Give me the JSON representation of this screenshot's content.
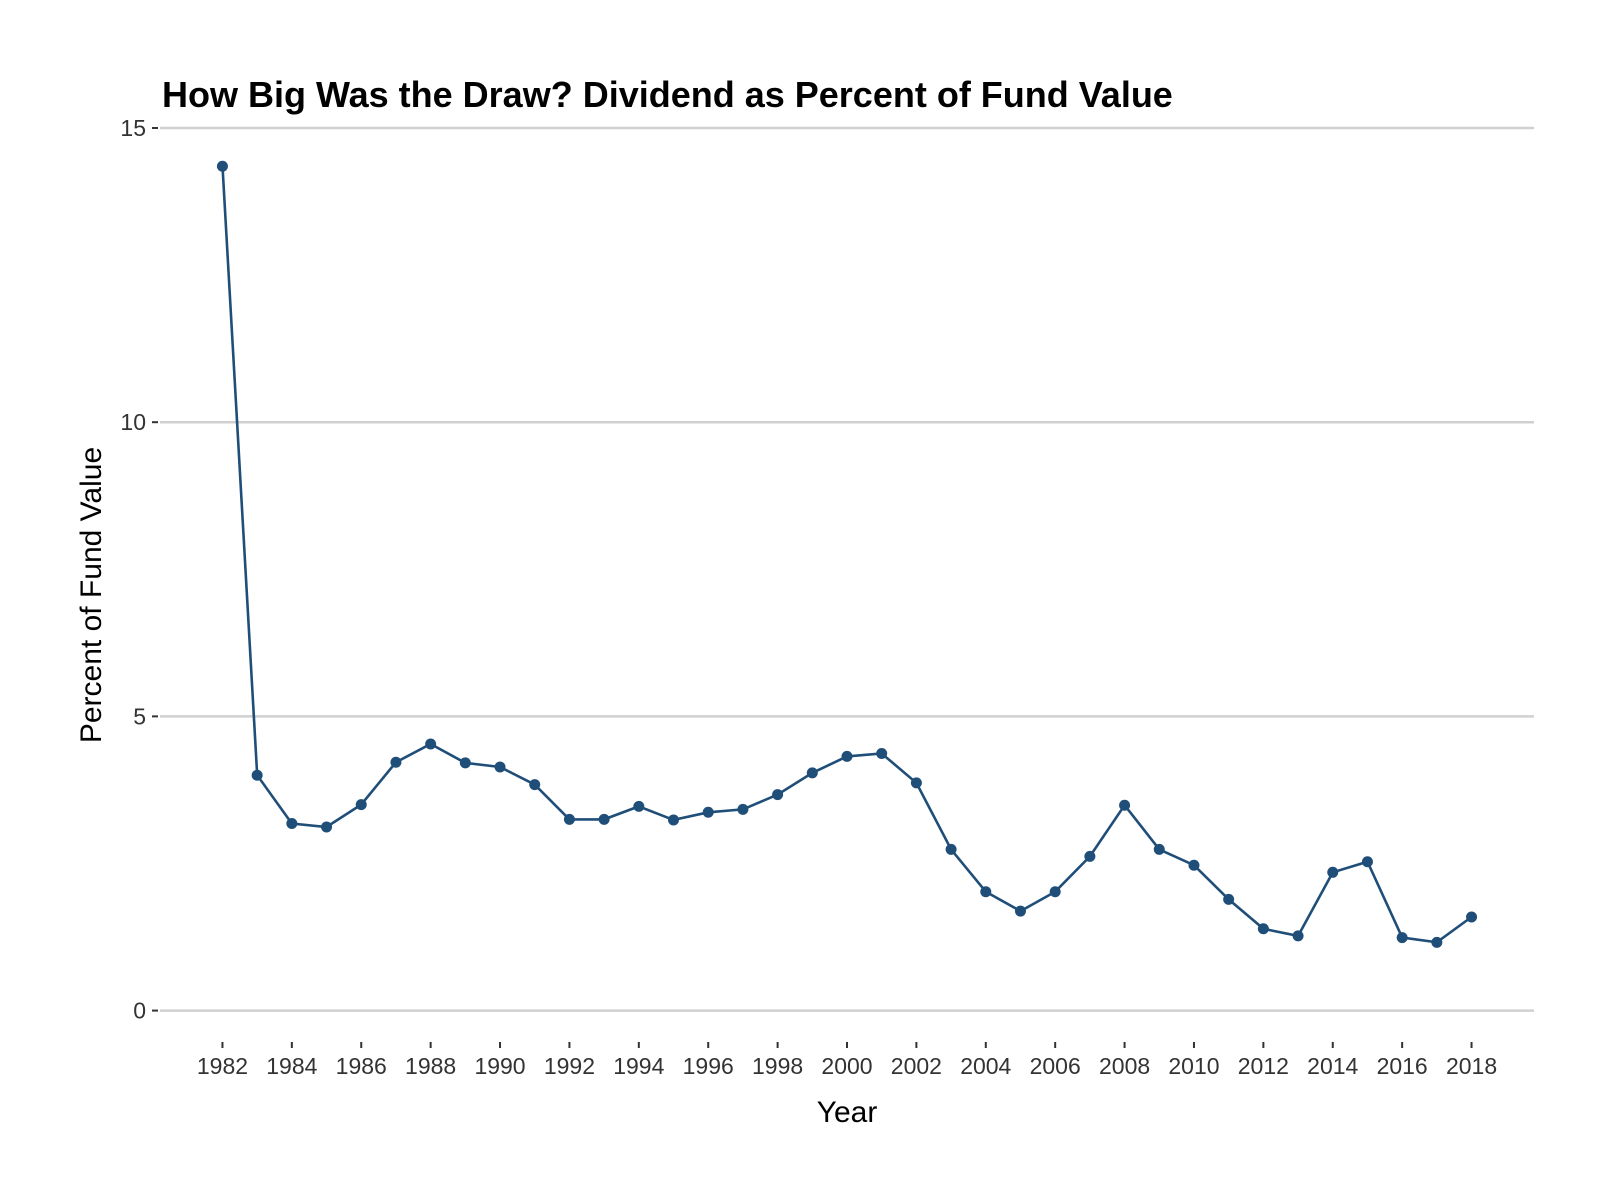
{
  "chart_data": {
    "type": "line",
    "title": "How Big Was the Draw? Dividend as Percent of Fund Value",
    "xlabel": "Year",
    "ylabel": "Percent of Fund Value",
    "x_ticks": [
      "1982",
      "1984",
      "1986",
      "1988",
      "1990",
      "1992",
      "1994",
      "1996",
      "1998",
      "2000",
      "2002",
      "2004",
      "2006",
      "2008",
      "2010",
      "2012",
      "2014",
      "2016",
      "2018"
    ],
    "y_ticks": [
      "0",
      "5",
      "10",
      "15"
    ],
    "xlim": [
      1980.2,
      2019.8
    ],
    "ylim": [
      -0.5,
      15
    ],
    "grid": true,
    "legend": "none",
    "series": [
      {
        "color": "#1f4e79",
        "x": [
          1982,
          1983,
          1984,
          1985,
          1986,
          1987,
          1988,
          1989,
          1990,
          1991,
          1992,
          1993,
          1994,
          1995,
          1996,
          1997,
          1998,
          1999,
          2000,
          2001,
          2002,
          2003,
          2004,
          2005,
          2006,
          2007,
          2008,
          2009,
          2010,
          2011,
          2012,
          2013,
          2014,
          2015,
          2016,
          2017,
          2018
        ],
        "y": [
          14.35,
          4.0,
          3.18,
          3.12,
          3.5,
          4.22,
          4.53,
          4.21,
          4.14,
          3.84,
          3.25,
          3.25,
          3.47,
          3.24,
          3.37,
          3.42,
          3.67,
          4.04,
          4.32,
          4.37,
          3.87,
          2.74,
          2.02,
          1.69,
          2.02,
          2.62,
          3.49,
          2.74,
          2.47,
          1.89,
          1.39,
          1.27,
          2.35,
          2.53,
          1.24,
          1.16,
          1.59
        ]
      }
    ]
  }
}
